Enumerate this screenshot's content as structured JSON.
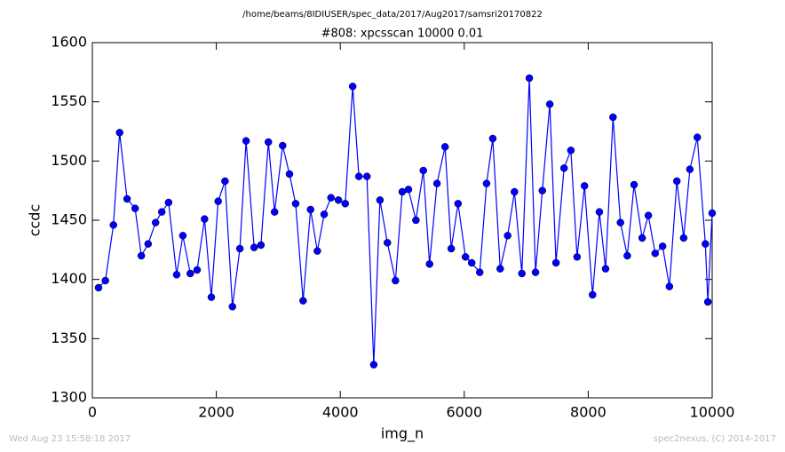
{
  "chart_data": {
    "type": "line",
    "suptitle": "/home/beams/8IDIUSER/spec_data/2017/Aug2017/samsri20170822",
    "title": "#808: xpcsscan 10000 0.01",
    "xlabel": "img_n",
    "ylabel": "ccdc",
    "footer_left": "Wed Aug 23 15:58:18 2017",
    "footer_right": "spec2nexus, (C) 2014-2017",
    "xlim": [
      0,
      10000
    ],
    "ylim": [
      1300,
      1600
    ],
    "xticks": [
      0,
      2000,
      4000,
      6000,
      8000,
      10000
    ],
    "yticks": [
      1300,
      1350,
      1400,
      1450,
      1500,
      1550,
      1600
    ],
    "x": [
      100,
      210,
      340,
      440,
      560,
      690,
      790,
      900,
      1020,
      1120,
      1230,
      1360,
      1460,
      1580,
      1690,
      1810,
      1920,
      2030,
      2140,
      2260,
      2380,
      2480,
      2610,
      2720,
      2840,
      2940,
      3070,
      3180,
      3280,
      3400,
      3520,
      3630,
      3740,
      3850,
      3970,
      4080,
      4200,
      4300,
      4430,
      4540,
      4640,
      4760,
      4890,
      5000,
      5100,
      5220,
      5340,
      5440,
      5560,
      5690,
      5790,
      5900,
      6020,
      6120,
      6250,
      6360,
      6460,
      6580,
      6700,
      6810,
      6930,
      7050,
      7150,
      7260,
      7380,
      7480,
      7610,
      7720,
      7820,
      7940,
      8070,
      8180,
      8280,
      8400,
      8520,
      8630,
      8740,
      8870,
      8970,
      9080,
      9200,
      9310,
      9430,
      9540,
      9640,
      9760,
      9890,
      9930,
      10000
    ],
    "series": [
      {
        "name": "ccdc",
        "color": "#0000ff",
        "values": [
          1393,
          1399,
          1446,
          1524,
          1468,
          1460,
          1420,
          1430,
          1448,
          1457,
          1465,
          1404,
          1437,
          1405,
          1408,
          1451,
          1385,
          1466,
          1483,
          1377,
          1426,
          1517,
          1427,
          1429,
          1516,
          1457,
          1513,
          1489,
          1464,
          1382,
          1459,
          1424,
          1455,
          1469,
          1467,
          1464,
          1563,
          1487,
          1487,
          1328,
          1467,
          1431,
          1399,
          1474,
          1476,
          1450,
          1492,
          1413,
          1481,
          1512,
          1426,
          1464,
          1419,
          1414,
          1406,
          1481,
          1519,
          1409,
          1437,
          1474,
          1405,
          1570,
          1406,
          1475,
          1548,
          1414,
          1494,
          1509,
          1419,
          1479,
          1387,
          1457,
          1409,
          1537,
          1448,
          1420,
          1480,
          1435,
          1454,
          1422,
          1428,
          1394,
          1483,
          1435,
          1493,
          1520,
          1430,
          1381,
          1456
        ]
      }
    ]
  }
}
